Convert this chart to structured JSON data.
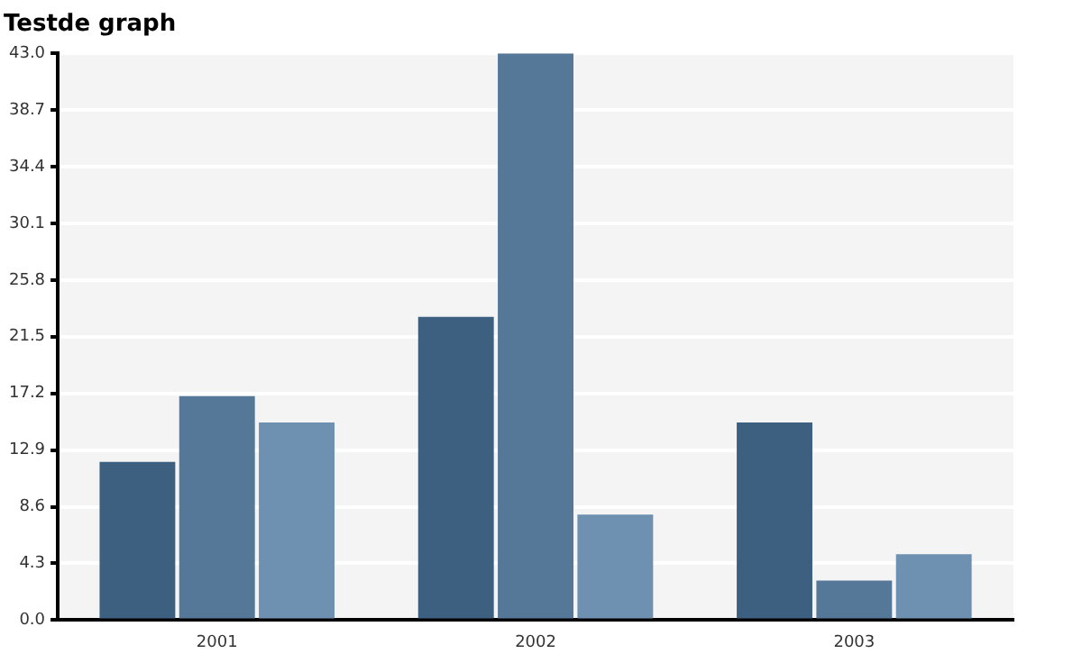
{
  "chart_data": {
    "type": "bar",
    "title": "Testde graph",
    "categories": [
      "2001",
      "2002",
      "2003"
    ],
    "series": [
      {
        "color": "#3d5f80",
        "values": [
          12,
          23,
          15
        ]
      },
      {
        "color": "#557899",
        "values": [
          17,
          43,
          3
        ]
      },
      {
        "color": "#6e90b1",
        "values": [
          15,
          8,
          5
        ]
      }
    ],
    "ylim": [
      0,
      43
    ],
    "yticks": [
      {
        "value": 0,
        "label": "0.0"
      },
      4.3,
      8.6,
      12.9,
      17.2,
      21.5,
      25.8,
      30.1,
      34.4,
      38.7,
      {
        "value": 43,
        "label": "43.0"
      }
    ],
    "grid": "y",
    "legend": false
  }
}
